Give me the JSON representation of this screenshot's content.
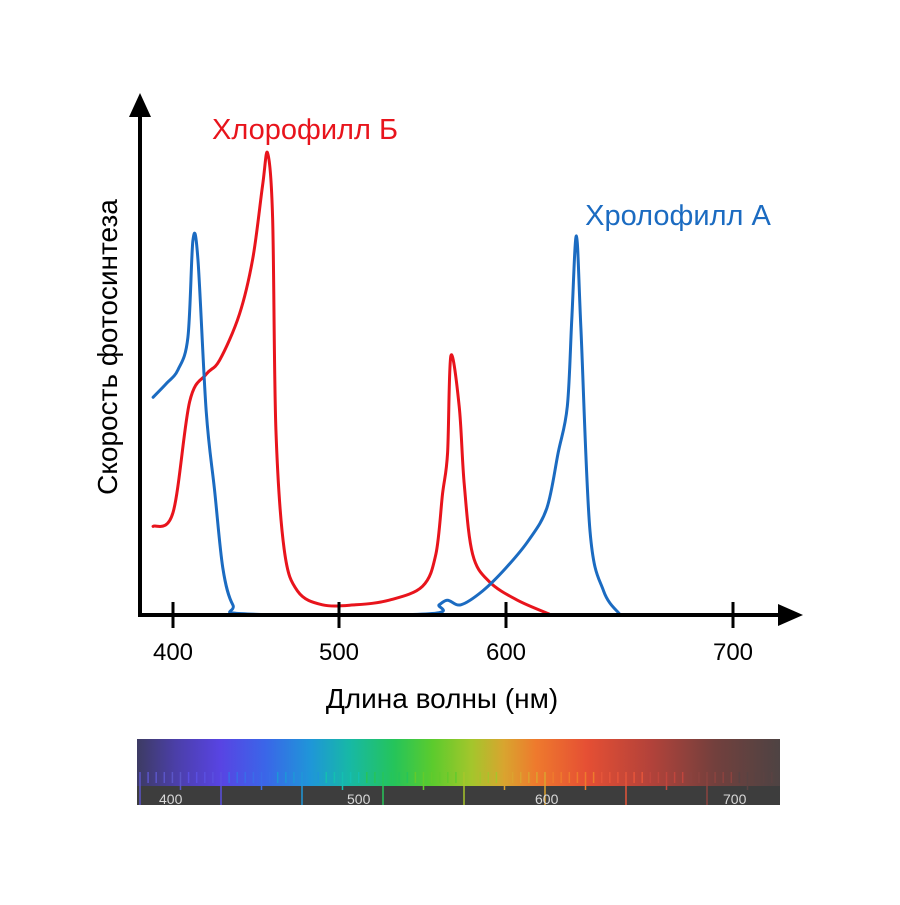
{
  "chart_data": {
    "type": "line",
    "xlabel": "Длина волны (нм)",
    "ylabel": "Скорость фотосинтеза",
    "x_ticks": [
      400,
      500,
      600,
      700
    ],
    "series": [
      {
        "name": "Хлорофилл Б",
        "color": "#e8141c",
        "points": [
          [
            388,
            0.19
          ],
          [
            400,
            0.22
          ],
          [
            410,
            0.46
          ],
          [
            420,
            0.52
          ],
          [
            428,
            0.55
          ],
          [
            440,
            0.65
          ],
          [
            448,
            0.77
          ],
          [
            454,
            0.93
          ],
          [
            457,
            1.0
          ],
          [
            460,
            0.86
          ],
          [
            462,
            0.4
          ],
          [
            467,
            0.14
          ],
          [
            475,
            0.05
          ],
          [
            490,
            0.02
          ],
          [
            510,
            0.02
          ],
          [
            530,
            0.03
          ],
          [
            550,
            0.06
          ],
          [
            558,
            0.13
          ],
          [
            562,
            0.26
          ],
          [
            565,
            0.35
          ],
          [
            567,
            0.56
          ],
          [
            572,
            0.45
          ],
          [
            575,
            0.28
          ],
          [
            580,
            0.13
          ],
          [
            590,
            0.07
          ],
          [
            605,
            0.03
          ],
          [
            619,
            0.0
          ]
        ]
      },
      {
        "name": "Хролофилл А",
        "color": "#1b6bc1",
        "points": [
          [
            388,
            0.47
          ],
          [
            396,
            0.5
          ],
          [
            403,
            0.53
          ],
          [
            409,
            0.6
          ],
          [
            412,
            0.81
          ],
          [
            415,
            0.77
          ],
          [
            420,
            0.44
          ],
          [
            425,
            0.27
          ],
          [
            430,
            0.1
          ],
          [
            436,
            0.02
          ],
          [
            445,
            0.0
          ],
          [
            552,
            0.0
          ],
          [
            560,
            0.02
          ],
          [
            565,
            0.03
          ],
          [
            573,
            0.02
          ],
          [
            586,
            0.05
          ],
          [
            600,
            0.1
          ],
          [
            610,
            0.16
          ],
          [
            618,
            0.23
          ],
          [
            623,
            0.35
          ],
          [
            627,
            0.45
          ],
          [
            629,
            0.64
          ],
          [
            631,
            0.82
          ],
          [
            633,
            0.62
          ],
          [
            637,
            0.18
          ],
          [
            643,
            0.05
          ],
          [
            650,
            0.0
          ]
        ]
      }
    ],
    "grid": false,
    "legend": "labels next to the curves"
  },
  "spectrum_bar": {
    "tick_labels": [
      "400",
      "500",
      "600",
      "700"
    ]
  }
}
